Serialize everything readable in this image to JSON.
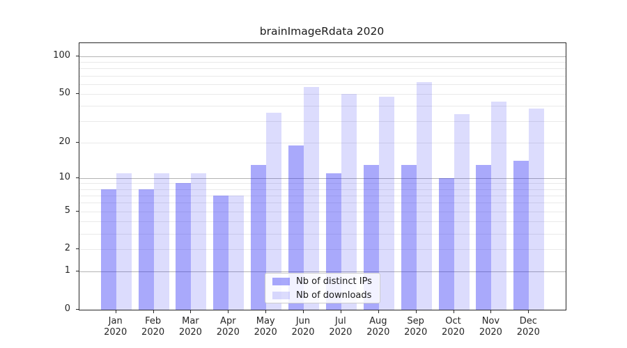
{
  "title": "brainImageRdata 2020",
  "legend": {
    "items": [
      {
        "label": "Nb of distinct IPs"
      },
      {
        "label": "Nb of downloads"
      }
    ]
  },
  "chart_data": {
    "type": "bar",
    "title": "brainImageRdata 2020",
    "categories": [
      "Jan",
      "Feb",
      "Mar",
      "Apr",
      "May",
      "Jun",
      "Jul",
      "Aug",
      "Sep",
      "Oct",
      "Nov",
      "Dec"
    ],
    "category_year": "2020",
    "series": [
      {
        "name": "Nb of distinct IPs",
        "color": "rgba(40,40,245,0.40)",
        "values": [
          8,
          8,
          9,
          7,
          13,
          19,
          11,
          13,
          13,
          10,
          13,
          14
        ]
      },
      {
        "name": "Nb of downloads",
        "color": "rgba(40,40,245,0.16)",
        "values": [
          11,
          11,
          11,
          7,
          35,
          57,
          50,
          47,
          62,
          34,
          43,
          38
        ]
      }
    ],
    "y_scale": "log1p",
    "ylim": [
      0,
      127
    ],
    "y_ticks": [
      0,
      1,
      2,
      5,
      10,
      20,
      50,
      100
    ],
    "y_gridlines_decade": [
      1,
      10,
      100
    ],
    "y_gridlines_minor": [
      2,
      3,
      4,
      5,
      6,
      7,
      8,
      9,
      20,
      30,
      40,
      50,
      60,
      70,
      80,
      90
    ],
    "grid": true,
    "legend_position": "lower center",
    "colors": {
      "grid_minor": "#e9e9e9",
      "grid_decade": "#b3b3b3",
      "spine": "#262626",
      "text": "#262626"
    }
  }
}
